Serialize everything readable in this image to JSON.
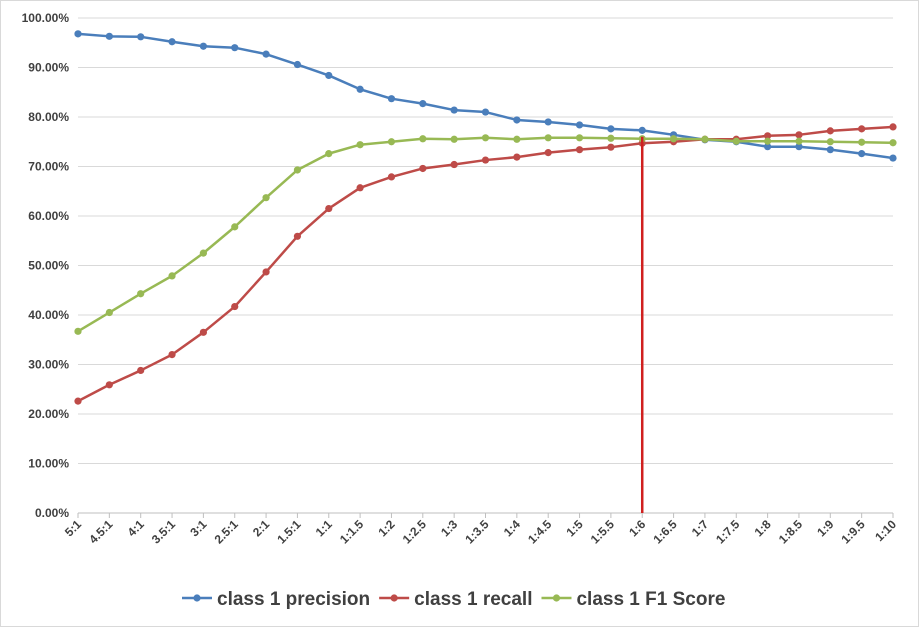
{
  "chart_data": {
    "type": "line",
    "title": "",
    "xlabel": "",
    "ylabel": "",
    "categories": [
      "5:1",
      "4.5:1",
      "4:1",
      "3.5:1",
      "3:1",
      "2.5:1",
      "2:1",
      "1.5:1",
      "1:1",
      "1:1.5",
      "1:2",
      "1:2.5",
      "1:3",
      "1:3.5",
      "1:4",
      "1:4.5",
      "1:5",
      "1:5.5",
      "1:6",
      "1:6.5",
      "1:7",
      "1:7.5",
      "1:8",
      "1:8.5",
      "1:9",
      "1:9.5",
      "1:10"
    ],
    "ylim": [
      0,
      100
    ],
    "yticks": [
      0,
      10,
      20,
      30,
      40,
      50,
      60,
      70,
      80,
      90,
      100
    ],
    "ytick_labels": [
      "0.00%",
      "10.00%",
      "20.00%",
      "30.00%",
      "40.00%",
      "50.00%",
      "60.00%",
      "70.00%",
      "80.00%",
      "90.00%",
      "100.00%"
    ],
    "grid": true,
    "legend_position": "bottom",
    "series": [
      {
        "name": "class 1 precision",
        "color": "#4a7ebb",
        "values": [
          96.8,
          96.3,
          96.2,
          95.2,
          94.3,
          94.0,
          92.7,
          90.6,
          88.4,
          85.6,
          83.7,
          82.7,
          81.4,
          81.0,
          79.4,
          79.0,
          78.4,
          77.6,
          77.3,
          76.4,
          75.4,
          75.0,
          74.0,
          74.0,
          73.4,
          72.6,
          71.7
        ]
      },
      {
        "name": "class 1 recall",
        "color": "#be4b48",
        "values": [
          22.6,
          25.9,
          28.8,
          32.0,
          36.5,
          41.7,
          48.7,
          55.9,
          61.5,
          65.7,
          67.9,
          69.6,
          70.4,
          71.3,
          71.9,
          72.8,
          73.4,
          73.9,
          74.7,
          75.0,
          75.5,
          75.5,
          76.2,
          76.4,
          77.2,
          77.6,
          78.0
        ]
      },
      {
        "name": "class 1 F1 Score",
        "color": "#98b954",
        "values": [
          36.7,
          40.5,
          44.3,
          47.9,
          52.5,
          57.8,
          63.7,
          69.3,
          72.6,
          74.4,
          75.0,
          75.6,
          75.5,
          75.8,
          75.5,
          75.8,
          75.8,
          75.7,
          75.6,
          75.6,
          75.5,
          75.1,
          75.1,
          75.1,
          75.0,
          74.9,
          74.8
        ]
      }
    ],
    "marker_line": {
      "category": "1:6",
      "color": "#d0201f"
    }
  }
}
